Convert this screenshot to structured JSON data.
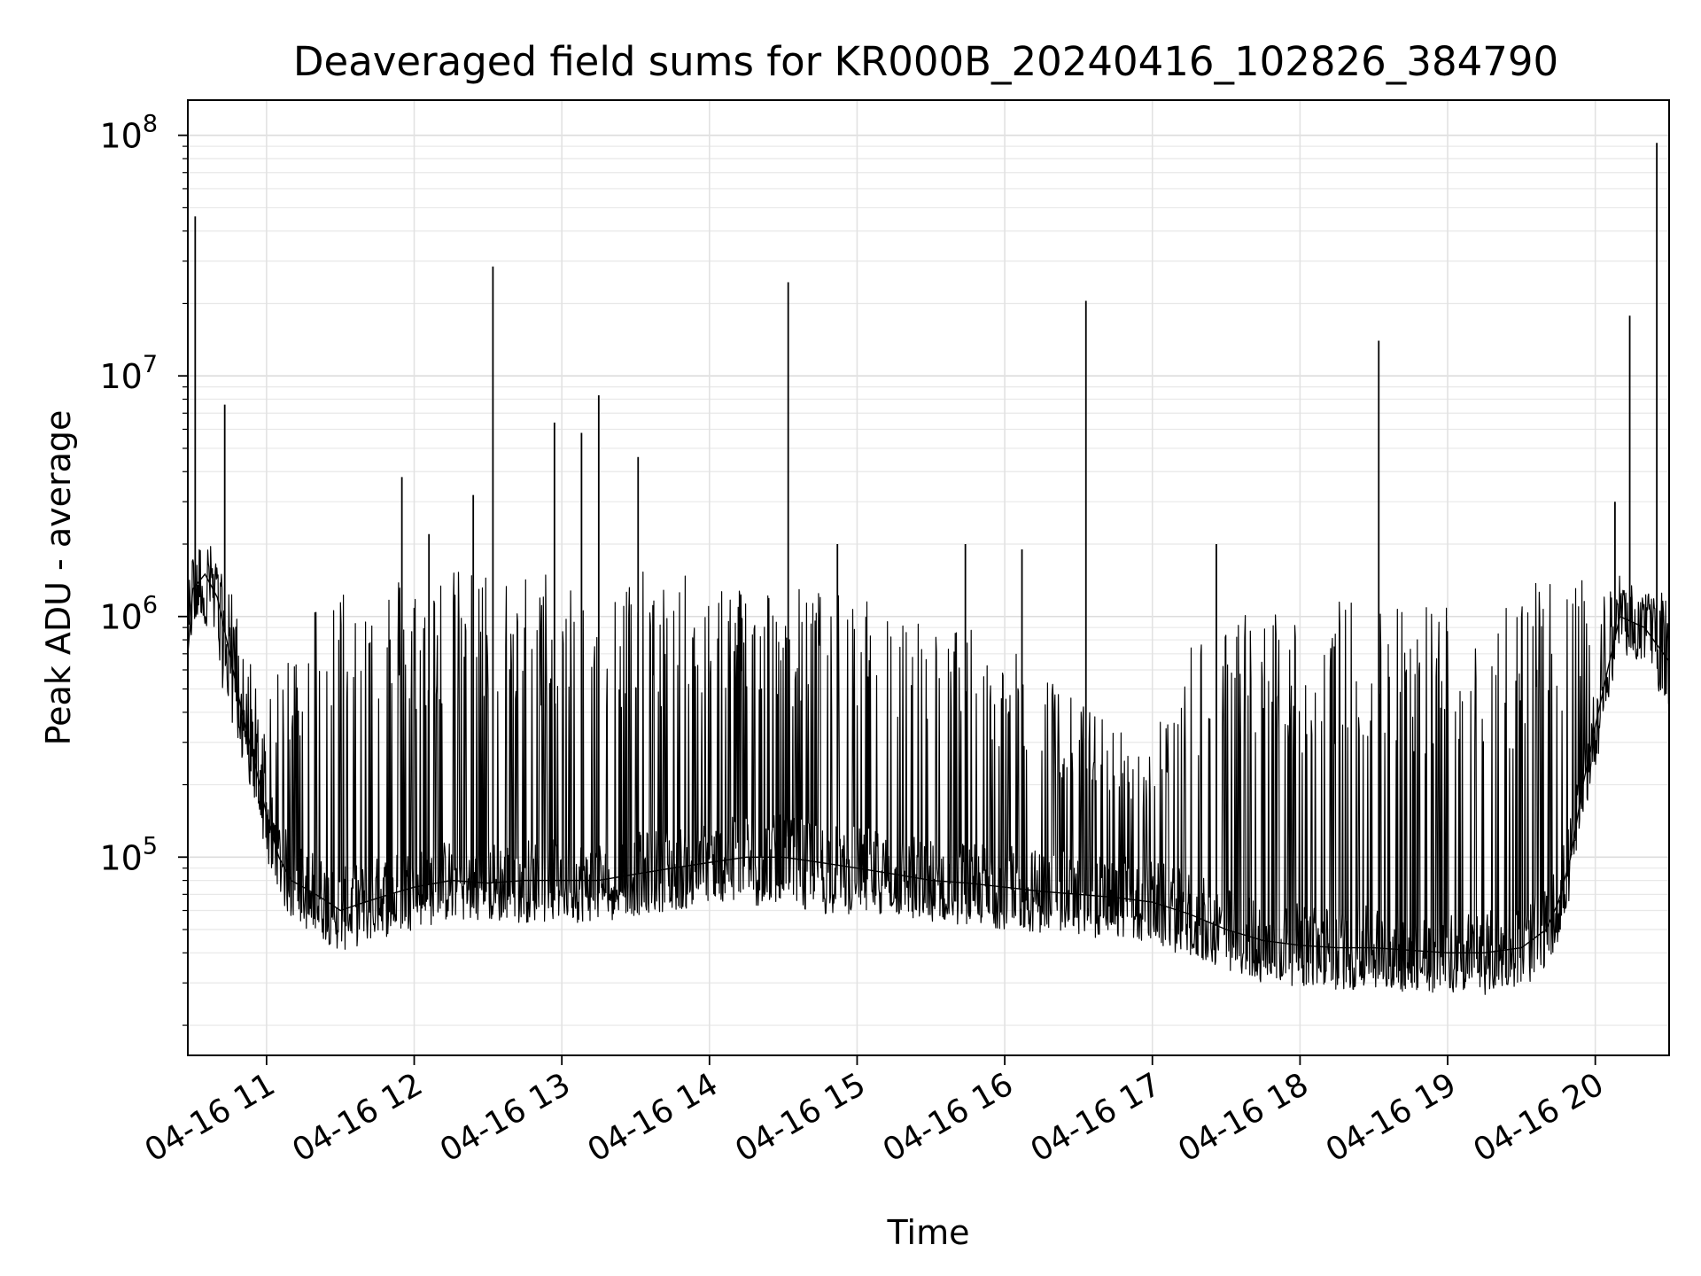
{
  "chart_data": {
    "type": "line",
    "title": "Deaveraged field sums for KR000B_20240416_102826_384790",
    "xlabel": "Time",
    "ylabel": "Peak ADU - average",
    "x_scale": "time",
    "y_scale": "log",
    "xlim": [
      "2024-04-16 10:28",
      "2024-04-16 20:30"
    ],
    "ylim": [
      15000,
      140000000
    ],
    "x_ticks": [
      {
        "label": "04-16 11",
        "value": "2024-04-16 11:00"
      },
      {
        "label": "04-16 12",
        "value": "2024-04-16 12:00"
      },
      {
        "label": "04-16 13",
        "value": "2024-04-16 13:00"
      },
      {
        "label": "04-16 14",
        "value": "2024-04-16 14:00"
      },
      {
        "label": "04-16 15",
        "value": "2024-04-16 15:00"
      },
      {
        "label": "04-16 16",
        "value": "2024-04-16 16:00"
      },
      {
        "label": "04-16 17",
        "value": "2024-04-16 17:00"
      },
      {
        "label": "04-16 18",
        "value": "2024-04-16 18:00"
      },
      {
        "label": "04-16 19",
        "value": "2024-04-16 19:00"
      },
      {
        "label": "04-16 20",
        "value": "2024-04-16 20:00"
      }
    ],
    "y_ticks": [
      {
        "base": "10",
        "exp": "5",
        "value": 100000
      },
      {
        "base": "10",
        "exp": "6",
        "value": 1000000
      },
      {
        "base": "10",
        "exp": "7",
        "value": 10000000
      },
      {
        "base": "10",
        "exp": "8",
        "value": 100000000
      }
    ],
    "grid": true,
    "color": "#000000",
    "series": [
      {
        "x": [
          "2024-04-16 10:28",
          "2024-04-16 10:30",
          "2024-04-16 10:35",
          "2024-04-16 10:40",
          "2024-04-16 10:45",
          "2024-04-16 10:50",
          "2024-04-16 10:55",
          "2024-04-16 11:00",
          "2024-04-16 11:05",
          "2024-04-16 11:10",
          "2024-04-16 11:15",
          "2024-04-16 11:20",
          "2024-04-16 11:25",
          "2024-04-16 11:30",
          "2024-04-16 11:40",
          "2024-04-16 11:50",
          "2024-04-16 12:00",
          "2024-04-16 12:15",
          "2024-04-16 12:30",
          "2024-04-16 12:45",
          "2024-04-16 13:00",
          "2024-04-16 13:15",
          "2024-04-16 13:30",
          "2024-04-16 13:45",
          "2024-04-16 14:00",
          "2024-04-16 14:15",
          "2024-04-16 14:30",
          "2024-04-16 14:45",
          "2024-04-16 15:00",
          "2024-04-16 15:15",
          "2024-04-16 15:30",
          "2024-04-16 15:45",
          "2024-04-16 16:00",
          "2024-04-16 16:15",
          "2024-04-16 16:30",
          "2024-04-16 16:45",
          "2024-04-16 17:00",
          "2024-04-16 17:15",
          "2024-04-16 17:30",
          "2024-04-16 17:45",
          "2024-04-16 18:00",
          "2024-04-16 18:15",
          "2024-04-16 18:30",
          "2024-04-16 18:45",
          "2024-04-16 19:00",
          "2024-04-16 19:15",
          "2024-04-16 19:30",
          "2024-04-16 19:40",
          "2024-04-16 19:45",
          "2024-04-16 19:50",
          "2024-04-16 19:55",
          "2024-04-16 20:00",
          "2024-04-16 20:05",
          "2024-04-16 20:10",
          "2024-04-16 20:20",
          "2024-04-16 20:30"
        ],
        "y": [
          700000,
          1300000,
          1500000,
          1200000,
          700000,
          400000,
          250000,
          150000,
          100000,
          80000,
          75000,
          70000,
          65000,
          60000,
          65000,
          70000,
          75000,
          80000,
          78000,
          80000,
          80000,
          80000,
          85000,
          90000,
          95000,
          100000,
          100000,
          95000,
          90000,
          85000,
          80000,
          78000,
          75000,
          72000,
          70000,
          68000,
          65000,
          58000,
          50000,
          45000,
          43000,
          42000,
          42000,
          41000,
          40000,
          40000,
          42000,
          50000,
          65000,
          100000,
          200000,
          350000,
          600000,
          1000000,
          900000,
          650000
        ],
        "upper": [
          1300000,
          1800000,
          1700000,
          1600000,
          1400000,
          800000,
          600000,
          400000,
          600000,
          800000,
          1000000,
          1300000,
          1400000,
          1500000,
          1500000,
          1550000,
          1550000,
          1580000,
          1600000,
          1600000,
          1600000,
          1580000,
          1550000,
          1500000,
          1500000,
          1450000,
          1400000,
          1300000,
          1200000,
          1100000,
          1000000,
          900000,
          750000,
          600000,
          450000,
          350000,
          300000,
          800000,
          1000000,
          1100000,
          1100000,
          1200000,
          1200000,
          1250000,
          1250000,
          1300000,
          1350000,
          1400000,
          1450000,
          1500000,
          1400000,
          1300000,
          1400000,
          1300000,
          1200000,
          1300000
        ],
        "lower": [
          450000,
          900000,
          900000,
          600000,
          400000,
          250000,
          150000,
          95000,
          75000,
          60000,
          55000,
          50000,
          48000,
          47000,
          48000,
          50000,
          55000,
          55000,
          55000,
          56000,
          56000,
          58000,
          58000,
          60000,
          62000,
          62000,
          60000,
          58000,
          56000,
          55000,
          54000,
          53000,
          52000,
          50000,
          48000,
          47000,
          44000,
          38000,
          33000,
          30000,
          29000,
          28000,
          28000,
          28000,
          28000,
          28000,
          30000,
          35000,
          45000,
          70000,
          150000,
          280000,
          500000,
          800000,
          600000,
          400000
        ]
      }
    ],
    "spikes": [
      {
        "x": "2024-04-16 10:31",
        "y": 46000000
      },
      {
        "x": "2024-04-16 10:43",
        "y": 7600000
      },
      {
        "x": "2024-04-16 11:55",
        "y": 3800000
      },
      {
        "x": "2024-04-16 12:06",
        "y": 2200000
      },
      {
        "x": "2024-04-16 12:24",
        "y": 3200000
      },
      {
        "x": "2024-04-16 12:32",
        "y": 28500000
      },
      {
        "x": "2024-04-16 12:57",
        "y": 6400000
      },
      {
        "x": "2024-04-16 13:08",
        "y": 5800000
      },
      {
        "x": "2024-04-16 13:15",
        "y": 8300000
      },
      {
        "x": "2024-04-16 13:31",
        "y": 4600000
      },
      {
        "x": "2024-04-16 14:32",
        "y": 24500000
      },
      {
        "x": "2024-04-16 14:52",
        "y": 2000000
      },
      {
        "x": "2024-04-16 15:44",
        "y": 2000000
      },
      {
        "x": "2024-04-16 16:07",
        "y": 1900000
      },
      {
        "x": "2024-04-16 16:33",
        "y": 20500000
      },
      {
        "x": "2024-04-16 17:26",
        "y": 2000000
      },
      {
        "x": "2024-04-16 18:32",
        "y": 14000000
      },
      {
        "x": "2024-04-16 20:08",
        "y": 3000000
      },
      {
        "x": "2024-04-16 20:14",
        "y": 17800000
      },
      {
        "x": "2024-04-16 20:25",
        "y": 93000000
      }
    ]
  }
}
